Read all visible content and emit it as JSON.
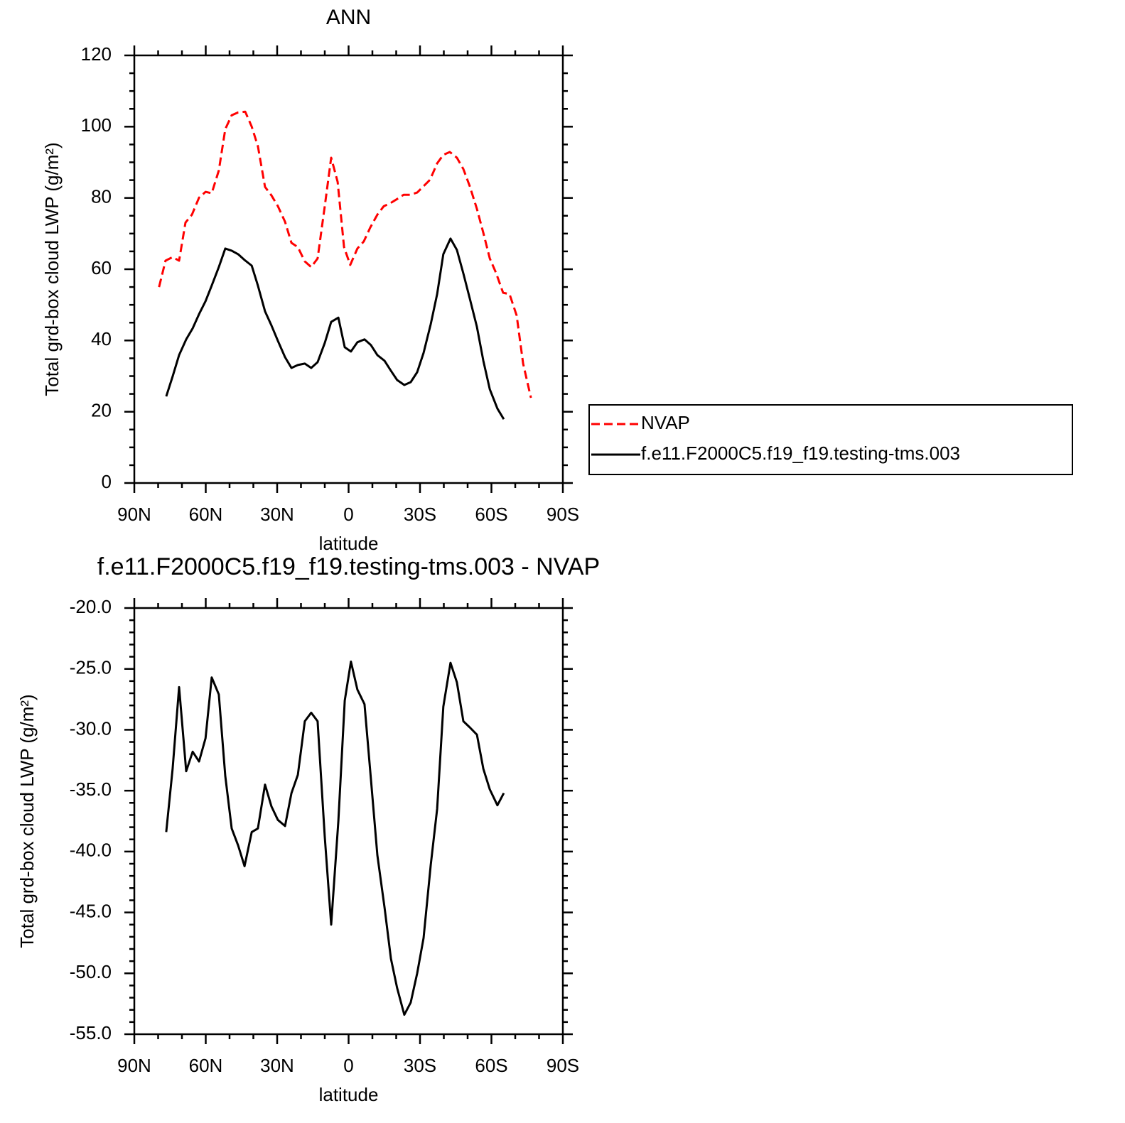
{
  "chart_data": [
    {
      "type": "line",
      "title": "ANN",
      "x_label": "latitude",
      "y_label": "Total grd-box cloud LWP (g/m²)",
      "xlim": [
        90,
        -90
      ],
      "xticks": [
        {
          "value": 90,
          "label": "90N"
        },
        {
          "value": 60,
          "label": "60N"
        },
        {
          "value": 30,
          "label": "30N"
        },
        0,
        {
          "value": -30,
          "label": "30S"
        },
        {
          "value": -60,
          "label": "60S"
        },
        {
          "value": -90,
          "label": "90S"
        }
      ],
      "ylim": [
        0,
        120
      ],
      "yticks": [
        0,
        20,
        40,
        60,
        80,
        100,
        120
      ],
      "legend": "right",
      "series": [
        {
          "name": "NVAP",
          "color": "#ff0000",
          "line_style": "dashed",
          "x": [
            79.6,
            76.9,
            73.9,
            71.2,
            68.5,
            65.8,
            62.8,
            60.1,
            57.5,
            54.5,
            51.8,
            49.1,
            46.4,
            43.4,
            40.7,
            38.1,
            35.1,
            32.4,
            29.7,
            26.7,
            24,
            21.3,
            18.4,
            15.7,
            13,
            10,
            7.3,
            4.6,
            1.9,
            -0.7,
            -3.7,
            -6.4,
            -9.1,
            -12.1,
            -14.8,
            -17.5,
            -20.4,
            -23.1,
            -25.8,
            -28.8,
            -31.5,
            -34.2,
            -37.2,
            -39.8,
            -42.5,
            -45.5,
            -48.2,
            -50.9,
            -53.9,
            -56.6,
            -59.3,
            -61.9,
            -64.9,
            -67.6,
            -70.6,
            -73.3,
            -76.6
          ],
          "values": [
            55.0,
            62.4,
            63.4,
            62.4,
            73.1,
            75.3,
            80.1,
            81.7,
            81.3,
            87.7,
            99.3,
            103.2,
            104.0,
            104.2,
            100.0,
            94.5,
            83.1,
            80.7,
            77.7,
            73.3,
            67.4,
            66.2,
            62.2,
            60.6,
            63.0,
            77.7,
            91.3,
            84.5,
            66.2,
            61.2,
            65.8,
            67.8,
            71.7,
            75.3,
            77.7,
            78.5,
            79.7,
            80.9,
            80.9,
            81.5,
            83.3,
            85.1,
            89.7,
            92.1,
            92.9,
            91.3,
            88.1,
            83.3,
            76.9,
            70.2,
            63.0,
            59.0,
            53.4,
            53.0,
            47.0,
            33.5,
            23.9
          ]
        },
        {
          "name": "f.e11.F2000C5.f19_f19.testing-tms.003",
          "color": "#000000",
          "line_style": "solid",
          "x": [
            76.6,
            73.9,
            71.2,
            68.2,
            65.5,
            62.8,
            60.1,
            57.5,
            54.5,
            51.8,
            49.1,
            46.4,
            43.7,
            40.7,
            38.1,
            35.1,
            32.4,
            29.7,
            26.7,
            24,
            21.3,
            18.4,
            15.7,
            13,
            10,
            7.3,
            4.3,
            1.6,
            -1,
            -3.7,
            -6.7,
            -9.4,
            -12.1,
            -15.1,
            -17.8,
            -20.4,
            -23.4,
            -26.1,
            -28.8,
            -31.5,
            -34.5,
            -37.2,
            -39.8,
            -42.8,
            -45.5,
            -48.2,
            -50.9,
            -53.9,
            -56.6,
            -59.3,
            -62.5,
            -65.2
          ],
          "values": [
            24.3,
            29.9,
            35.9,
            40.3,
            43.4,
            47.4,
            51.0,
            55.4,
            60.6,
            65.8,
            65.2,
            64.2,
            62.6,
            61.0,
            55.4,
            48.2,
            44.2,
            39.9,
            35.3,
            32.3,
            33.1,
            33.5,
            32.3,
            33.9,
            39.3,
            45.2,
            46.4,
            38.1,
            36.9,
            39.5,
            40.3,
            38.7,
            35.9,
            34.3,
            31.5,
            28.9,
            27.5,
            28.3,
            31.1,
            36.5,
            44.6,
            53.0,
            64.2,
            68.6,
            65.4,
            58.8,
            51.8,
            43.8,
            34.3,
            26.3,
            20.9,
            17.9
          ]
        }
      ]
    },
    {
      "type": "line",
      "title": "f.e11.F2000C5.f19_f19.testing-tms.003 - NVAP",
      "x_label": "latitude",
      "y_label": "Total grd-box cloud LWP (g/m²)",
      "xlim": [
        90,
        -90
      ],
      "xticks": [
        {
          "value": 90,
          "label": "90N"
        },
        {
          "value": 60,
          "label": "60N"
        },
        {
          "value": 30,
          "label": "30N"
        },
        0,
        {
          "value": -30,
          "label": "30S"
        },
        {
          "value": -60,
          "label": "60S"
        },
        {
          "value": -90,
          "label": "90S"
        }
      ],
      "ylim": [
        -55,
        -20
      ],
      "yticks": [
        {
          "value": -55,
          "label": "-55.0"
        },
        {
          "value": -50,
          "label": "-50.0"
        },
        {
          "value": -45,
          "label": "-45.0"
        },
        {
          "value": -40,
          "label": "-40.0"
        },
        {
          "value": -35,
          "label": "-35.0"
        },
        {
          "value": -30,
          "label": "-30.0"
        },
        {
          "value": -25,
          "label": "-25.0"
        },
        {
          "value": -20,
          "label": "-20.0"
        }
      ],
      "series": [
        {
          "color": "#000000",
          "line_style": "solid",
          "x": [
            76.6,
            73.9,
            71.2,
            68.2,
            65.5,
            62.8,
            60.1,
            57.5,
            54.5,
            51.8,
            49.1,
            46.4,
            43.7,
            40.7,
            38.1,
            35.1,
            32.4,
            29.7,
            26.7,
            24,
            21.3,
            18.4,
            15.7,
            13,
            10,
            7.3,
            4.3,
            1.6,
            -1,
            -3.7,
            -6.7,
            -9.4,
            -12.1,
            -15.1,
            -17.8,
            -20.4,
            -23.4,
            -26.1,
            -28.8,
            -31.5,
            -34.5,
            -37.2,
            -39.8,
            -42.8,
            -45.5,
            -48.2,
            -50.9,
            -53.9,
            -56.6,
            -59.3,
            -62.5,
            -65.2
          ],
          "values": [
            -38.4,
            -33.2,
            -26.5,
            -33.4,
            -31.8,
            -32.6,
            -30.7,
            -25.7,
            -27.1,
            -33.8,
            -38.1,
            -39.5,
            -41.2,
            -38.4,
            -38.1,
            -34.5,
            -36.3,
            -37.4,
            -37.9,
            -35.2,
            -33.7,
            -29.3,
            -28.6,
            -29.3,
            -38.8,
            -46.0,
            -37.5,
            -27.6,
            -24.4,
            -26.7,
            -27.9,
            -34.1,
            -40.3,
            -44.6,
            -48.8,
            -51.2,
            -53.4,
            -52.4,
            -50.0,
            -47.1,
            -41.1,
            -36.5,
            -28.1,
            -24.5,
            -26.1,
            -29.3,
            -29.8,
            -30.4,
            -33.2,
            -34.9,
            -36.2,
            -35.2
          ]
        }
      ]
    }
  ]
}
